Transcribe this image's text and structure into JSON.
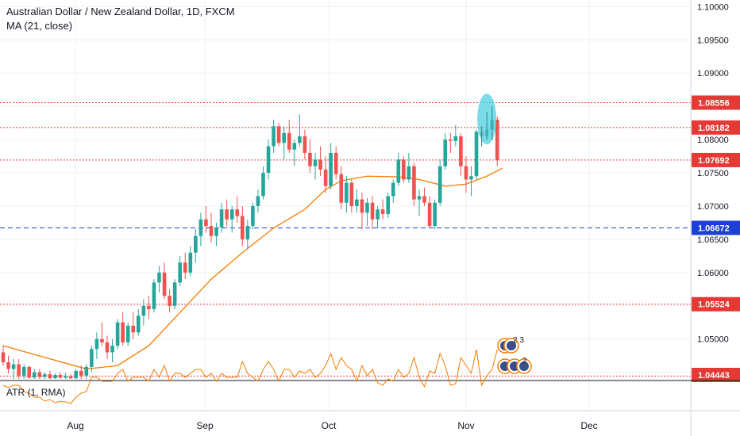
{
  "header": {
    "symbol_title": "Australian Dollar / New Zealand Dollar, 1D, FXCM",
    "indicator_title": "MA (21, close)",
    "atr_title": "ATR (1, RMA)"
  },
  "colors": {
    "up": "#26a69a",
    "down": "#ef5350",
    "ma": "#f57c00",
    "resistance": "#e53935",
    "support": "#1e3fd6",
    "highlight": "#4dd0e1",
    "atr": "#f57c00"
  },
  "chart_data": {
    "type": "candlestick",
    "title": "Australian Dollar / New Zealand Dollar, 1D, FXCM",
    "ylim": [
      1.044,
      1.101
    ],
    "y_ticks": [
      "1.10000",
      "1.09500",
      "1.09000",
      "1.08500",
      "1.08000",
      "1.07500",
      "1.07000",
      "1.06500",
      "1.06000",
      "1.05500",
      "1.05000",
      "1.04500"
    ],
    "x_ticks": [
      "Aug",
      "Sep",
      "Oct",
      "Nov",
      "Dec"
    ],
    "price_labels": [
      {
        "value": "1.08556",
        "kind": "resistance"
      },
      {
        "value": "1.08182",
        "kind": "resistance"
      },
      {
        "value": "1.07692",
        "kind": "resistance"
      },
      {
        "value": "1.06672",
        "kind": "support"
      },
      {
        "value": "1.05524",
        "kind": "resistance"
      },
      {
        "value": "1.04443",
        "kind": "resistance"
      }
    ],
    "annotations": [
      {
        "text": "2 3"
      },
      {
        "text": "2"
      }
    ],
    "candles": [
      [
        1.048,
        1.049,
        1.046,
        1.0465
      ],
      [
        1.0465,
        1.0475,
        1.0448,
        1.0455
      ],
      [
        1.0455,
        1.047,
        1.044,
        1.0462
      ],
      [
        1.0462,
        1.047,
        1.044,
        1.0445
      ],
      [
        1.0445,
        1.0462,
        1.044,
        1.0458
      ],
      [
        1.0458,
        1.046,
        1.044,
        1.0442
      ],
      [
        1.0442,
        1.0455,
        1.044,
        1.045
      ],
      [
        1.045,
        1.0455,
        1.044,
        1.0443
      ],
      [
        1.0443,
        1.045,
        1.044,
        1.0447
      ],
      [
        1.0447,
        1.0452,
        1.044,
        1.0441
      ],
      [
        1.0441,
        1.0448,
        1.044,
        1.0446
      ],
      [
        1.0446,
        1.045,
        1.044,
        1.0442
      ],
      [
        1.0442,
        1.0449,
        1.044,
        1.0444
      ],
      [
        1.0444,
        1.0447,
        1.044,
        1.0441
      ],
      [
        1.0441,
        1.0455,
        1.044,
        1.0452
      ],
      [
        1.0452,
        1.046,
        1.044,
        1.0445
      ],
      [
        1.0445,
        1.0462,
        1.044,
        1.0458
      ],
      [
        1.0458,
        1.049,
        1.045,
        1.0485
      ],
      [
        1.0485,
        1.051,
        1.047,
        1.05
      ],
      [
        1.05,
        1.0525,
        1.049,
        1.0495
      ],
      [
        1.0495,
        1.0505,
        1.047,
        1.048
      ],
      [
        1.048,
        1.05,
        1.0465,
        1.049
      ],
      [
        1.049,
        1.053,
        1.0485,
        1.0525
      ],
      [
        1.0525,
        1.054,
        1.049,
        1.0495
      ],
      [
        1.0495,
        1.0525,
        1.049,
        1.052
      ],
      [
        1.052,
        1.054,
        1.05,
        1.051
      ],
      [
        1.051,
        1.0545,
        1.0505,
        1.0535
      ],
      [
        1.0535,
        1.056,
        1.052,
        1.055
      ],
      [
        1.055,
        1.0565,
        1.053,
        1.0545
      ],
      [
        1.0545,
        1.059,
        1.054,
        1.0585
      ],
      [
        1.0585,
        1.061,
        1.057,
        1.06
      ],
      [
        1.06,
        1.0615,
        1.056,
        1.0565
      ],
      [
        1.0565,
        1.0575,
        1.054,
        1.055
      ],
      [
        1.055,
        1.059,
        1.0545,
        1.0585
      ],
      [
        1.0585,
        1.0625,
        1.058,
        1.0615
      ],
      [
        1.0615,
        1.063,
        1.059,
        1.06
      ],
      [
        1.06,
        1.064,
        1.0595,
        1.063
      ],
      [
        1.063,
        1.0665,
        1.0615,
        1.0655
      ],
      [
        1.0655,
        1.069,
        1.064,
        1.068
      ],
      [
        1.068,
        1.07,
        1.066,
        1.067
      ],
      [
        1.067,
        1.069,
        1.0645,
        1.0655
      ],
      [
        1.0655,
        1.0675,
        1.064,
        1.0668
      ],
      [
        1.0668,
        1.0705,
        1.066,
        1.0695
      ],
      [
        1.0695,
        1.071,
        1.067,
        1.068
      ],
      [
        1.068,
        1.07,
        1.066,
        1.0695
      ],
      [
        1.0695,
        1.0715,
        1.0675,
        1.0685
      ],
      [
        1.0685,
        1.07,
        1.064,
        1.065
      ],
      [
        1.065,
        1.068,
        1.0635,
        1.067
      ],
      [
        1.067,
        1.0705,
        1.0665,
        1.07
      ],
      [
        1.07,
        1.0725,
        1.069,
        1.0715
      ],
      [
        1.0715,
        1.076,
        1.071,
        1.075
      ],
      [
        1.075,
        1.08,
        1.074,
        1.079
      ],
      [
        1.079,
        1.083,
        1.078,
        1.082
      ],
      [
        1.082,
        1.0825,
        1.079,
        1.0795
      ],
      [
        1.0795,
        1.082,
        1.077,
        1.081
      ],
      [
        1.081,
        1.083,
        1.078,
        1.0785
      ],
      [
        1.0785,
        1.08,
        1.076,
        1.0795
      ],
      [
        1.0795,
        1.0838,
        1.079,
        1.0805
      ],
      [
        1.0805,
        1.0815,
        1.077,
        1.078
      ],
      [
        1.078,
        1.08,
        1.075,
        1.076
      ],
      [
        1.076,
        1.078,
        1.074,
        1.077
      ],
      [
        1.077,
        1.079,
        1.0745,
        1.0755
      ],
      [
        1.0755,
        1.0775,
        1.072,
        1.073
      ],
      [
        1.073,
        1.0795,
        1.0725,
        1.078
      ],
      [
        1.078,
        1.079,
        1.074,
        1.0748
      ],
      [
        1.0748,
        1.076,
        1.0695,
        1.0705
      ],
      [
        1.0705,
        1.0745,
        1.069,
        1.0735
      ],
      [
        1.0735,
        1.074,
        1.069,
        1.07
      ],
      [
        1.07,
        1.0725,
        1.069,
        1.071
      ],
      [
        1.071,
        1.072,
        1.0665,
        1.069
      ],
      [
        1.069,
        1.0712,
        1.067,
        1.0705
      ],
      [
        1.0705,
        1.0715,
        1.0665,
        1.068
      ],
      [
        1.068,
        1.07,
        1.0667,
        1.0695
      ],
      [
        1.0695,
        1.071,
        1.068,
        1.0688
      ],
      [
        1.0688,
        1.072,
        1.0682,
        1.0715
      ],
      [
        1.0715,
        1.074,
        1.0705,
        1.0735
      ],
      [
        1.0735,
        1.078,
        1.073,
        1.077
      ],
      [
        1.077,
        1.0775,
        1.0735,
        1.074
      ],
      [
        1.074,
        1.078,
        1.0735,
        1.076
      ],
      [
        1.076,
        1.0765,
        1.07,
        1.071
      ],
      [
        1.071,
        1.0725,
        1.0685,
        1.0715
      ],
      [
        1.0715,
        1.0728,
        1.07,
        1.0705
      ],
      [
        1.0705,
        1.0715,
        1.0667,
        1.067
      ],
      [
        1.067,
        1.071,
        1.0665,
        1.0705
      ],
      [
        1.0705,
        1.077,
        1.07,
        1.076
      ],
      [
        1.076,
        1.081,
        1.0755,
        1.08
      ],
      [
        1.08,
        1.081,
        1.078,
        1.0798
      ],
      [
        1.0798,
        1.0822,
        1.079,
        1.0805
      ],
      [
        1.0805,
        1.081,
        1.0745,
        1.076
      ],
      [
        1.076,
        1.0775,
        1.072,
        1.074
      ],
      [
        1.074,
        1.076,
        1.0715,
        1.0745
      ],
      [
        1.0745,
        1.0815,
        1.074,
        1.0812
      ],
      [
        1.0812,
        1.082,
        1.079,
        1.0805
      ],
      [
        1.0805,
        1.0842,
        1.08,
        1.0815
      ],
      [
        1.0815,
        1.085,
        1.08,
        1.083
      ],
      [
        1.083,
        1.0835,
        1.076,
        1.0769
      ]
    ],
    "ma_21": [
      [
        0,
        1.049
      ],
      [
        10,
        1.0468
      ],
      [
        16,
        1.0455
      ],
      [
        22,
        1.046
      ],
      [
        28,
        1.049
      ],
      [
        34,
        1.054
      ],
      [
        40,
        1.059
      ],
      [
        46,
        1.063
      ],
      [
        52,
        1.0667
      ],
      [
        58,
        1.0695
      ],
      [
        62,
        1.0725
      ],
      [
        65,
        1.0738
      ],
      [
        70,
        1.0745
      ],
      [
        76,
        1.0744
      ],
      [
        80,
        1.074
      ],
      [
        85,
        1.073
      ],
      [
        89,
        1.0733
      ],
      [
        93,
        1.0745
      ],
      [
        96,
        1.0757
      ]
    ],
    "atr": {
      "ylim": [
        0,
        0.0032
      ]
    }
  }
}
